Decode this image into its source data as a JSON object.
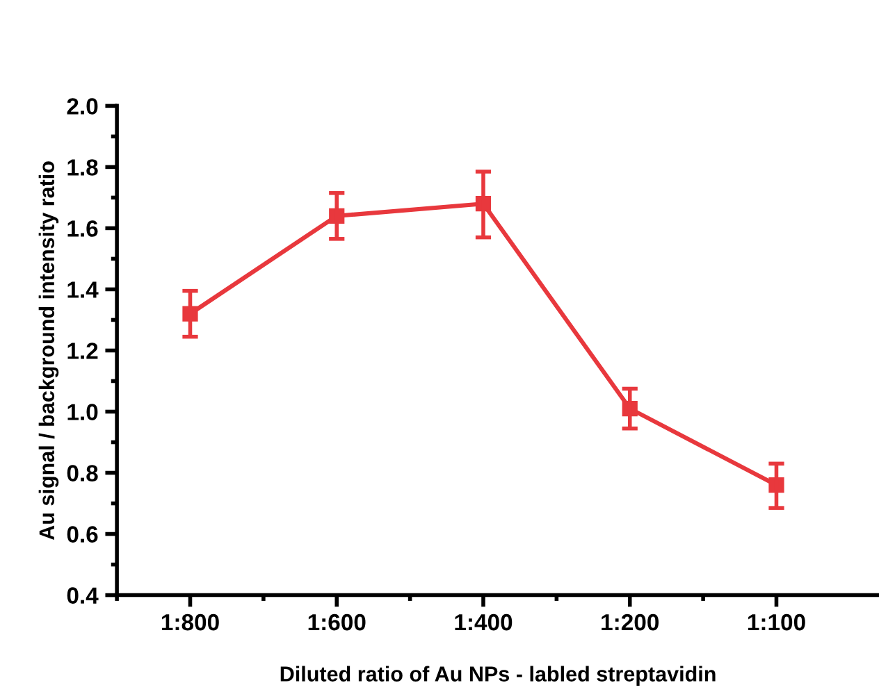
{
  "chart_data": {
    "type": "line",
    "xlabel": "Diluted ratio of Au NPs - labled streptavidin",
    "ylabel": "Au signal / background intensity ratio",
    "categories": [
      "1:800",
      "1:600",
      "1:400",
      "1:200",
      "1:100"
    ],
    "series": [
      {
        "color": "#e8383d",
        "values": [
          1.32,
          1.64,
          1.68,
          1.01,
          0.76
        ],
        "errors": [
          [
            1.245,
            1.395
          ],
          [
            1.565,
            1.715
          ],
          [
            1.57,
            1.785
          ],
          [
            0.945,
            1.075
          ],
          [
            0.685,
            0.83
          ]
        ]
      }
    ],
    "ylim": [
      0.4,
      2.0
    ],
    "yticks": [
      0.4,
      0.6,
      0.8,
      {
        "value": 1,
        "label": "1.0"
      },
      1.2,
      1.4,
      1.6,
      1.8,
      {
        "value": 2,
        "label": "2.0"
      }
    ],
    "marker": "square",
    "line_style": "solid",
    "grid": false,
    "legend": false
  }
}
